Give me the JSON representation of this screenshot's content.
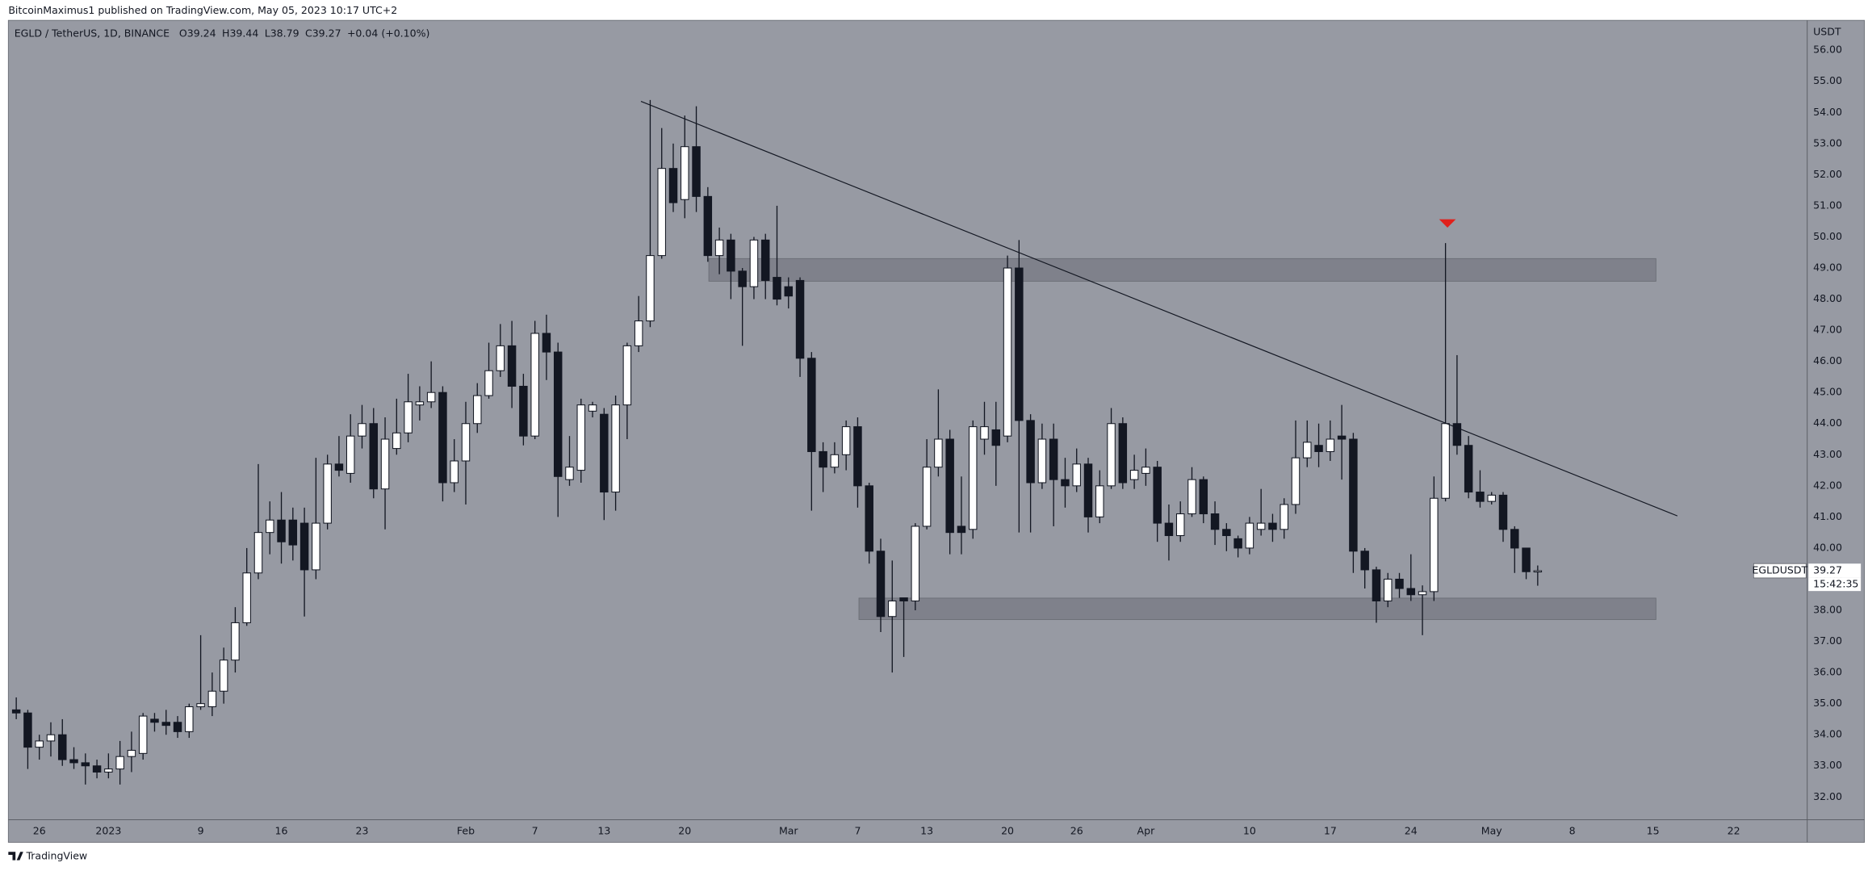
{
  "header": {
    "publisher": "BitcoinMaximus1 published on TradingView.com, May 05, 2023 10:17 UTC+2"
  },
  "chart_data": {
    "type": "candlestick",
    "symbol": "EGLD / TetherUS, 1D, BINANCE",
    "legend_keys": [
      "O",
      "H",
      "L",
      "C"
    ],
    "change": "+0.04 (+0.10%)",
    "currency": "USDT",
    "symbol_tag": "EGLDUSDT",
    "countdown": "15:42:35",
    "up_color": "#ffffff",
    "down_color": "#131722",
    "categories": [
      null,
      null,
      "26",
      null,
      null,
      null,
      null,
      null,
      "2023",
      null,
      null,
      null,
      null,
      null,
      null,
      null,
      "9",
      null,
      null,
      null,
      null,
      null,
      null,
      "16",
      null,
      null,
      null,
      null,
      null,
      null,
      "23",
      null,
      null,
      null,
      null,
      null,
      null,
      null,
      null,
      "Feb",
      null,
      null,
      null,
      null,
      null,
      "7",
      null,
      null,
      null,
      null,
      null,
      "13",
      null,
      null,
      null,
      null,
      null,
      null,
      "20",
      null,
      null,
      null,
      null,
      null,
      null,
      null,
      null,
      "Mar",
      null,
      null,
      null,
      null,
      null,
      "7",
      null,
      null,
      null,
      null,
      null,
      "13",
      null,
      null,
      null,
      null,
      null,
      null,
      "20",
      null,
      null,
      null,
      null,
      null,
      "26",
      null,
      null,
      null,
      null,
      null,
      "Apr",
      null,
      null,
      null,
      null,
      null,
      null,
      null,
      null,
      "10",
      null,
      null,
      null,
      null,
      null,
      null,
      "17",
      null,
      null,
      null,
      null,
      null,
      null,
      "24",
      null,
      null,
      null,
      null,
      null,
      null,
      "May",
      null,
      null,
      null,
      null,
      null,
      null,
      "8",
      null,
      null,
      null,
      null,
      null,
      null,
      "15",
      null,
      null,
      null,
      null,
      null,
      null,
      "22"
    ],
    "open": [
      34.8,
      34.7,
      33.6,
      33.8,
      34.0,
      33.2,
      33.1,
      33.0,
      32.8,
      32.9,
      33.3,
      33.4,
      34.5,
      34.4,
      34.4,
      34.1,
      34.9,
      34.9,
      35.4,
      36.4,
      37.6,
      39.2,
      40.5,
      40.9,
      40.9,
      40.8,
      39.3,
      40.8,
      42.7,
      42.4,
      43.6,
      44.0,
      41.9,
      43.2,
      43.7,
      44.6,
      44.7,
      45.0,
      42.1,
      42.8,
      44.0,
      44.9,
      45.7,
      46.5,
      45.2,
      43.6,
      46.9,
      46.3,
      42.2,
      42.5,
      44.4,
      44.3,
      41.8,
      44.6,
      46.5,
      47.3,
      49.4,
      52.2,
      51.2,
      52.9,
      51.3,
      49.4,
      49.9,
      48.9,
      48.4,
      49.9,
      48.7,
      48.4,
      48.6,
      46.1,
      43.1,
      42.6,
      43.0,
      43.9,
      42.0,
      39.9,
      37.8,
      38.4,
      38.3,
      40.7,
      42.6,
      43.5,
      40.7,
      40.6,
      43.5,
      43.8,
      43.6,
      49.0,
      44.1,
      42.1,
      43.5,
      42.2,
      42.0,
      42.7,
      41.0,
      42.0,
      44.0,
      42.2,
      42.4,
      42.6,
      40.8,
      40.4,
      41.1,
      42.2,
      41.1,
      40.6,
      40.3,
      40.0,
      40.6,
      40.8,
      40.6,
      41.4,
      42.9,
      43.3,
      43.1,
      43.6,
      43.5,
      39.9,
      39.3,
      38.3,
      39.0,
      38.7,
      38.5,
      38.6,
      41.6,
      44.0,
      43.3,
      41.8,
      41.5,
      41.7,
      40.6,
      40.0,
      39.24,
      null,
      null,
      null,
      null,
      null,
      null,
      null,
      null,
      null,
      null,
      null,
      null,
      null,
      null,
      null,
      null,
      null
    ],
    "high": [
      35.2,
      34.8,
      34.0,
      34.4,
      34.5,
      33.6,
      33.4,
      33.2,
      33.4,
      33.8,
      34.1,
      34.7,
      34.7,
      34.8,
      34.6,
      35.0,
      37.2,
      36.0,
      36.8,
      38.1,
      40.0,
      42.7,
      41.5,
      41.8,
      41.3,
      41.3,
      42.9,
      43.0,
      43.6,
      44.3,
      44.6,
      44.5,
      44.2,
      44.8,
      45.6,
      45.2,
      46.0,
      45.2,
      43.5,
      44.7,
      45.3,
      46.6,
      47.2,
      47.3,
      45.6,
      47.3,
      47.5,
      46.6,
      43.6,
      44.8,
      44.7,
      44.5,
      44.9,
      46.6,
      48.1,
      54.4,
      53.5,
      53.0,
      53.9,
      54.2,
      51.6,
      50.3,
      50.1,
      49.0,
      50.0,
      50.1,
      51.0,
      48.7,
      48.7,
      46.3,
      43.4,
      43.4,
      44.1,
      44.2,
      42.1,
      40.3,
      39.6,
      38.4,
      40.8,
      43.5,
      45.1,
      43.8,
      42.3,
      44.1,
      44.7,
      44.7,
      49.4,
      49.9,
      44.3,
      44.0,
      44.0,
      42.9,
      43.2,
      42.9,
      42.5,
      44.5,
      44.2,
      43.0,
      43.2,
      42.8,
      41.4,
      41.5,
      42.6,
      42.3,
      41.5,
      40.8,
      40.4,
      41.0,
      41.9,
      41.1,
      41.6,
      44.1,
      44.1,
      44.0,
      44.1,
      44.6,
      43.7,
      40.0,
      39.4,
      39.2,
      39.2,
      39.8,
      38.8,
      42.3,
      49.8,
      46.2,
      43.6,
      42.5,
      41.8,
      41.8,
      40.7,
      40.0,
      39.44,
      null,
      null,
      null,
      null,
      null,
      null,
      null,
      null,
      null,
      null,
      null,
      null,
      null,
      null,
      null,
      null,
      null
    ],
    "low": [
      34.5,
      32.9,
      33.2,
      33.3,
      33.0,
      32.9,
      32.4,
      32.6,
      32.6,
      32.4,
      32.8,
      33.2,
      34.1,
      34.0,
      33.9,
      33.9,
      34.8,
      34.6,
      35.0,
      36.0,
      37.5,
      39.0,
      39.8,
      39.5,
      39.6,
      37.8,
      39.0,
      40.6,
      42.3,
      42.1,
      43.2,
      41.6,
      40.6,
      43.0,
      43.4,
      44.1,
      44.5,
      41.5,
      41.8,
      41.4,
      43.7,
      44.8,
      45.5,
      44.5,
      43.3,
      43.5,
      45.4,
      41.0,
      42.0,
      42.1,
      44.2,
      40.9,
      41.2,
      43.5,
      46.3,
      47.1,
      49.3,
      50.8,
      50.6,
      50.8,
      49.2,
      48.8,
      48.0,
      46.5,
      48.0,
      48.0,
      47.8,
      47.7,
      45.5,
      41.2,
      41.8,
      42.4,
      42.5,
      41.3,
      39.5,
      37.3,
      36.0,
      36.5,
      38.0,
      40.6,
      42.3,
      39.8,
      39.8,
      40.3,
      43.0,
      42.0,
      43.4,
      40.5,
      40.5,
      41.9,
      40.7,
      41.3,
      41.8,
      40.5,
      40.8,
      41.9,
      41.9,
      41.9,
      42.0,
      40.2,
      39.6,
      40.2,
      41.0,
      40.8,
      40.1,
      39.9,
      39.7,
      39.8,
      40.4,
      40.2,
      40.3,
      41.1,
      42.6,
      42.6,
      42.8,
      42.2,
      39.2,
      38.7,
      37.6,
      38.1,
      38.4,
      38.3,
      37.2,
      38.3,
      41.5,
      43.0,
      41.6,
      41.3,
      41.4,
      40.2,
      39.2,
      39.0,
      38.79,
      null,
      null,
      null,
      null,
      null,
      null,
      null,
      null,
      null,
      null,
      null,
      null,
      null,
      null,
      null,
      null,
      null
    ],
    "close": [
      34.7,
      33.6,
      33.8,
      34.0,
      33.2,
      33.1,
      33.0,
      32.8,
      32.9,
      33.3,
      33.5,
      34.6,
      34.4,
      34.3,
      34.1,
      34.9,
      35.0,
      35.4,
      36.4,
      37.6,
      39.2,
      40.5,
      40.9,
      40.2,
      40.1,
      39.3,
      40.8,
      42.7,
      42.5,
      43.6,
      44.0,
      41.9,
      43.5,
      43.7,
      44.7,
      44.7,
      45.0,
      42.1,
      42.8,
      44.0,
      44.9,
      45.7,
      46.5,
      45.2,
      43.6,
      46.9,
      46.3,
      42.3,
      42.6,
      44.6,
      44.6,
      41.8,
      44.6,
      46.5,
      47.3,
      49.4,
      52.2,
      51.1,
      52.9,
      51.3,
      49.4,
      49.9,
      48.9,
      48.4,
      49.9,
      48.6,
      48.0,
      48.1,
      46.1,
      43.1,
      42.6,
      43.0,
      43.9,
      42.0,
      39.9,
      37.8,
      38.3,
      38.3,
      40.7,
      42.6,
      43.5,
      40.5,
      40.5,
      43.9,
      43.9,
      43.3,
      49.0,
      44.1,
      42.1,
      43.5,
      42.2,
      42.0,
      42.7,
      41.0,
      42.0,
      44.0,
      42.1,
      42.5,
      42.6,
      40.8,
      40.4,
      41.1,
      42.2,
      41.1,
      40.6,
      40.4,
      40.0,
      40.8,
      40.8,
      40.6,
      41.4,
      42.9,
      43.4,
      43.1,
      43.5,
      43.5,
      39.9,
      39.3,
      38.3,
      39.0,
      38.7,
      38.5,
      38.6,
      41.6,
      44.0,
      43.3,
      41.8,
      41.5,
      41.7,
      40.6,
      40.0,
      39.24,
      39.27,
      null,
      null,
      null,
      null,
      null,
      null,
      null,
      null,
      null,
      null,
      null,
      null,
      null,
      null,
      null,
      null,
      null
    ],
    "ylim": [
      31.27,
      56.96
    ],
    "yticks": [
      {
        "value": 32,
        "label": "32.00"
      },
      {
        "value": 33,
        "label": "33.00"
      },
      {
        "value": 34,
        "label": "34.00"
      },
      {
        "value": 35,
        "label": "35.00"
      },
      {
        "value": 36,
        "label": "36.00"
      },
      {
        "value": 37,
        "label": "37.00"
      },
      {
        "value": 38,
        "label": "38.00"
      },
      {
        "value": 39,
        "label": "39.00"
      },
      {
        "value": 40,
        "label": "40.00"
      },
      {
        "value": 41,
        "label": "41.00"
      },
      {
        "value": 42,
        "label": "42.00"
      },
      {
        "value": 43,
        "label": "43.00"
      },
      {
        "value": 44,
        "label": "44.00"
      },
      {
        "value": 45,
        "label": "45.00"
      },
      {
        "value": 46,
        "label": "46.00"
      },
      {
        "value": 47,
        "label": "47.00"
      },
      {
        "value": 48,
        "label": "48.00"
      },
      {
        "value": 49,
        "label": "49.00"
      },
      {
        "value": 50,
        "label": "50.00"
      },
      {
        "value": 51,
        "label": "51.00"
      },
      {
        "value": 52,
        "label": "52.00"
      },
      {
        "value": 53,
        "label": "53.00"
      },
      {
        "value": 54,
        "label": "54.00"
      },
      {
        "value": 55,
        "label": "55.00"
      },
      {
        "value": 56,
        "label": "56.00"
      }
    ]
  },
  "footer": {
    "brand": "TradingView"
  }
}
